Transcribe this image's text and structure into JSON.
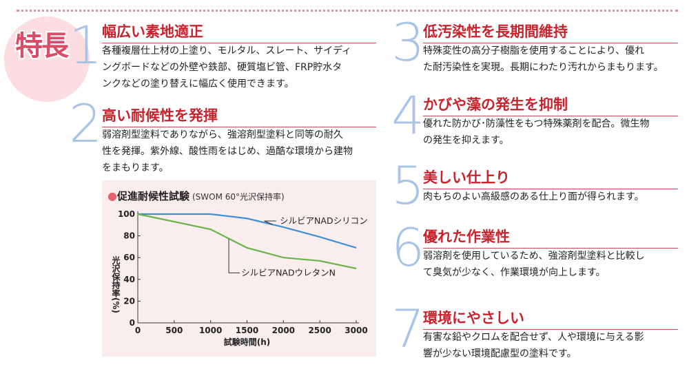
{
  "badge": "特長",
  "colors": {
    "accent": "#c8232c",
    "number": "#a9c4e6",
    "badge_bg": "#fbdde2",
    "series1": "#3d8fd1",
    "series2": "#6ab24a"
  },
  "features": [
    {
      "num": "1",
      "title": "幅広い素地適正",
      "lines": [
        "各種複層仕上材の上塗り、モルタル、スレート、サイディ",
        "ングボードなどの外壁や鉄部、硬質塩ビ管、FRP貯水タ",
        "ンクなどの塗り替えに幅広く使用できます。"
      ]
    },
    {
      "num": "2",
      "title": "高い耐候性を発揮",
      "lines": [
        "弱溶剤型塗料でありながら、強溶剤型塗料と同等の耐久",
        "性を発揮。紫外線、酸性雨をはじめ、過酷な環境から建物",
        "をまもります。"
      ]
    },
    {
      "num": "3",
      "title": "低汚染性を長期間維持",
      "lines": [
        "特殊変性の高分子樹脂を使用することにより、優れ",
        "た耐汚染性を実現。長期にわたり汚れからまもります。"
      ]
    },
    {
      "num": "4",
      "title": "かびや藻の発生を抑制",
      "lines": [
        "優れた防かび･防藻性をもつ特殊薬剤を配合。微生物",
        "の発生を抑えます。"
      ]
    },
    {
      "num": "5",
      "title": "美しい仕上り",
      "lines": [
        "肉もちのよい高級感のある仕上り面が得られます。"
      ]
    },
    {
      "num": "6",
      "title": "優れた作業性",
      "lines": [
        "弱溶剤を使用しているため、強溶剤型塗料と比較し",
        "て臭気が少なく、作業環境が向上します。"
      ]
    },
    {
      "num": "7",
      "title": "環境にやさしい",
      "lines": [
        "有害な鉛やクロムを配合せず、人や環境に与える影",
        "響が少ない環境配慮型の塗料です。"
      ]
    }
  ],
  "chart_data": {
    "type": "line",
    "title": "促進耐候性試験",
    "subtitle": "(SWOM 60°光沢保持率)",
    "xlabel": "試験時間(h)",
    "ylabel": "光沢保持率(%)",
    "xlim": [
      0,
      3000
    ],
    "ylim": [
      0,
      100
    ],
    "x_ticks": [
      "0",
      "500",
      "1000",
      "1500",
      "2000",
      "2500",
      "3000"
    ],
    "y_ticks": [
      "0",
      "20",
      "40",
      "60",
      "80",
      "100"
    ],
    "grid": false,
    "series": [
      {
        "name": "シルビアNADシリコン",
        "color": "#3d8fd1",
        "x": [
          0,
          1000,
          1500,
          2000,
          2500,
          3000
        ],
        "y": [
          100,
          100,
          96,
          88,
          79,
          69
        ]
      },
      {
        "name": "シルビアNADウレタンN",
        "color": "#6ab24a",
        "x": [
          0,
          1000,
          1500,
          2000,
          2500,
          3000
        ],
        "y": [
          100,
          86,
          69,
          60,
          57,
          50
        ]
      }
    ]
  }
}
